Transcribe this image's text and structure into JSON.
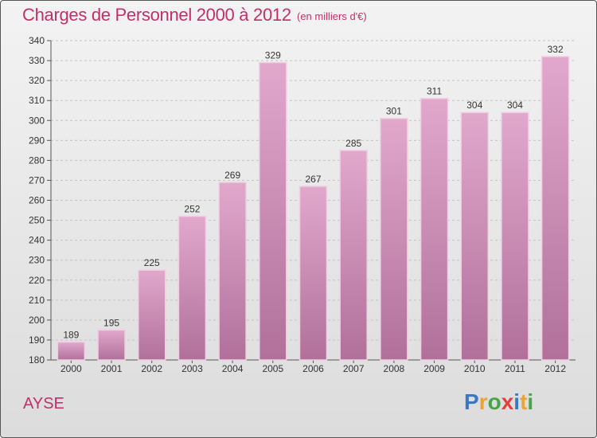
{
  "header": {
    "title": "Charges de Personnel 2000 à 2012",
    "subtitle": "(en milliers d'€)"
  },
  "footer": {
    "city": "AYSE",
    "logo": {
      "letters": [
        "P",
        "r",
        "o",
        "x",
        "i",
        "t",
        "i"
      ],
      "colors": [
        "#3b78c3",
        "#e8a33a",
        "#47a447",
        "#e2413b",
        "#3b78c3",
        "#e8a33a",
        "#47a447"
      ]
    }
  },
  "colors": {
    "bar_top": "#e2a8cc",
    "bar_bottom": "#b0709a",
    "bar_highlight": "#f0cfe2",
    "text_accent": "#c0306b"
  },
  "chart_data": {
    "type": "bar",
    "title": "Charges de Personnel 2000 à 2012",
    "subtitle": "(en milliers d'€)",
    "categories": [
      "2000",
      "2001",
      "2002",
      "2003",
      "2004",
      "2005",
      "2006",
      "2007",
      "2008",
      "2009",
      "2010",
      "2011",
      "2012"
    ],
    "values": [
      189,
      195,
      225,
      252,
      269,
      329,
      267,
      285,
      301,
      311,
      304,
      304,
      332
    ],
    "value_labels": [
      "189",
      "195",
      "225",
      "252",
      "269",
      "329",
      "267",
      "285",
      "301",
      "311",
      "304",
      "304",
      "332"
    ],
    "ylim": [
      180,
      340
    ],
    "yticks": [
      "180",
      "190",
      "200",
      "210",
      "220",
      "230",
      "240",
      "250",
      "260",
      "270",
      "280",
      "290",
      "300",
      "310",
      "320",
      "330",
      "340"
    ],
    "grid": true,
    "legend": "none"
  }
}
